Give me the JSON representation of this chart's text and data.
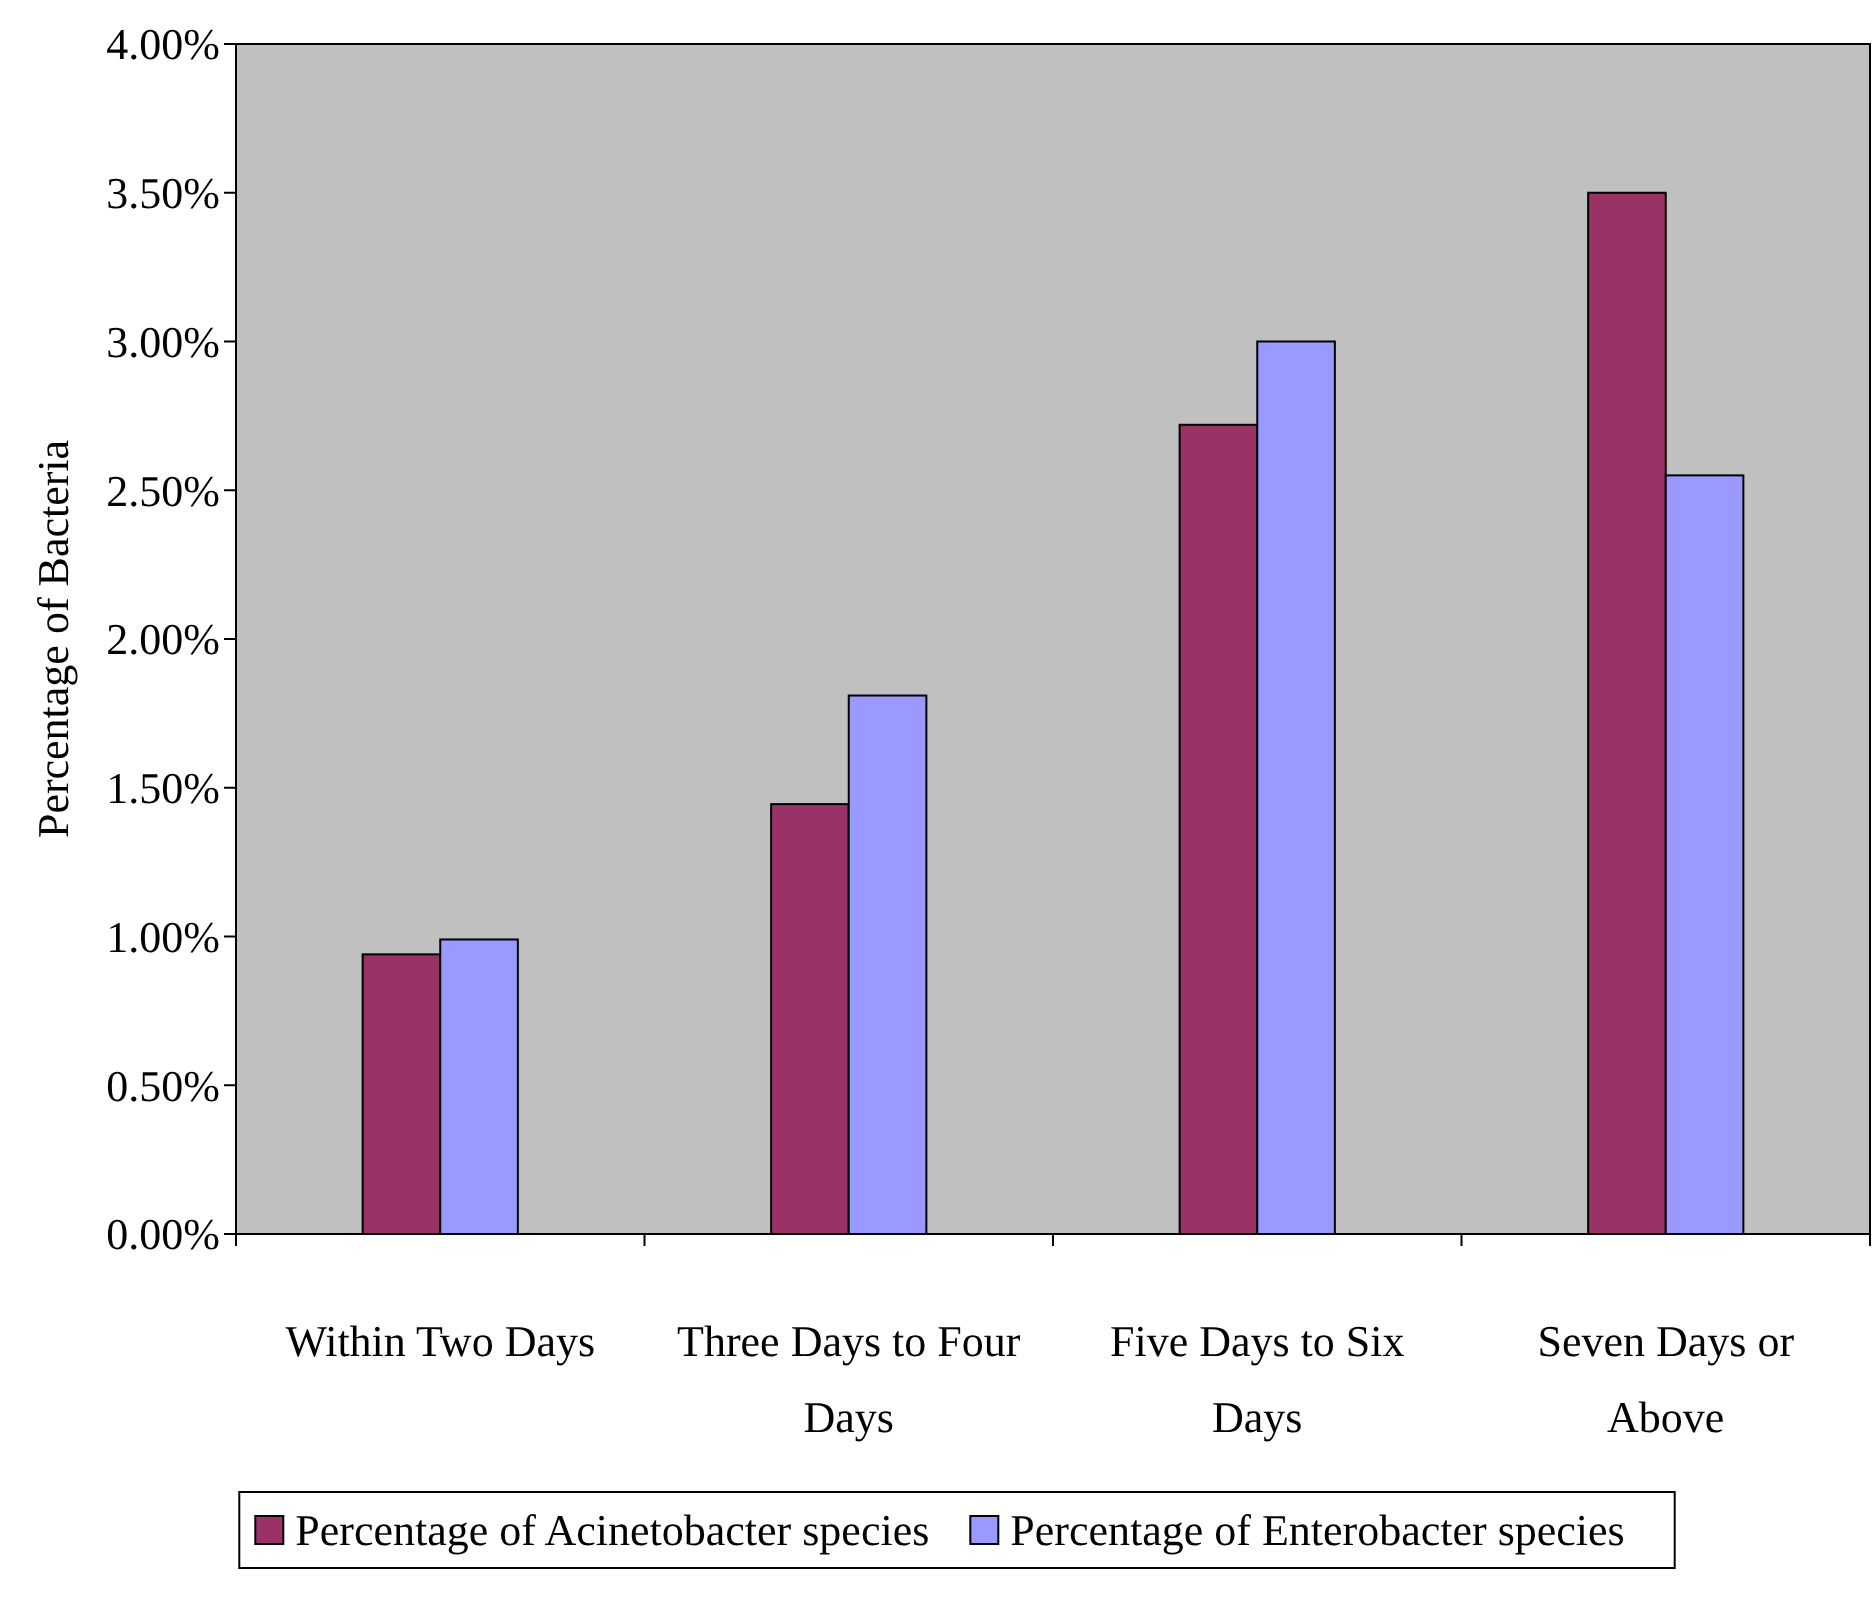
{
  "chart_data": {
    "type": "bar",
    "ylabel": "Percentage of Bacteria",
    "categories": [
      "Within Two Days",
      "Three Days to Four Days",
      "Five Days to Six Days",
      "Seven Days or Above"
    ],
    "series": [
      {
        "name": "Percentage of Acinetobacter species",
        "color": "#993366",
        "values": [
          0.94,
          1.445,
          2.72,
          3.5
        ]
      },
      {
        "name": "Percentage of Enterobacter species",
        "color": "#9999ff",
        "values": [
          0.99,
          1.81,
          3.0,
          2.55
        ]
      }
    ],
    "ylim": [
      0,
      4
    ],
    "yticks": [
      {
        "value": 0,
        "label": "0.00%"
      },
      {
        "value": 0.5,
        "label": "0.50%"
      },
      {
        "value": 1,
        "label": "1.00%"
      },
      {
        "value": 1.5,
        "label": "1.50%"
      },
      {
        "value": 2,
        "label": "2.00%"
      },
      {
        "value": 2.5,
        "label": "2.50%"
      },
      {
        "value": 3,
        "label": "3.00%"
      },
      {
        "value": 3.5,
        "label": "3.50%"
      },
      {
        "value": 4,
        "label": "4.00%"
      }
    ],
    "grid": false,
    "legend": "bottom"
  }
}
